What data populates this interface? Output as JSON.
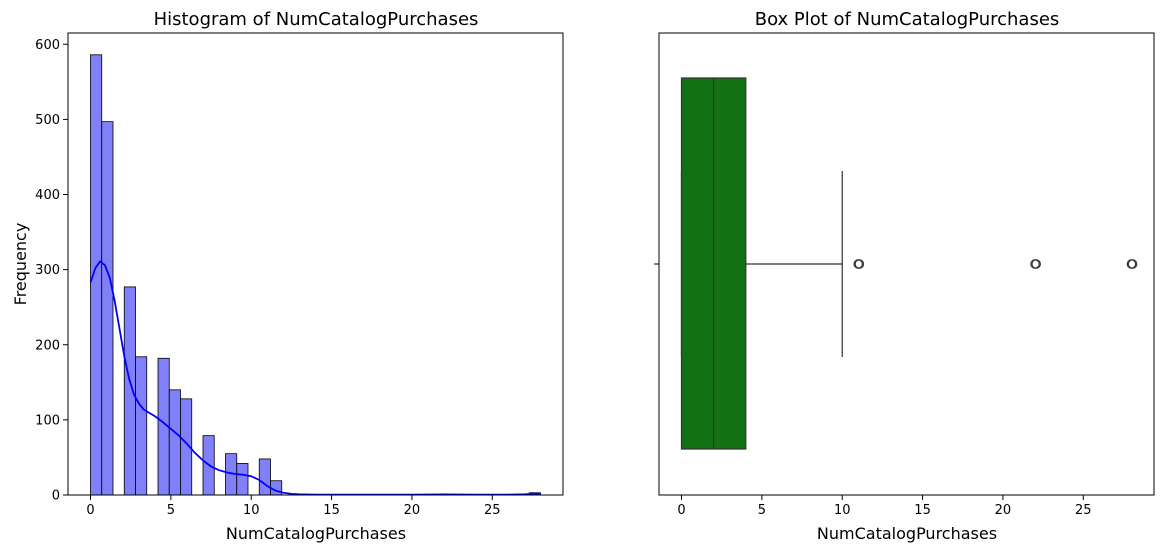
{
  "chart_data": [
    {
      "type": "bar",
      "title": "Histogram of NumCatalogPurchases",
      "xlabel": "NumCatalogPurchases",
      "ylabel": "Frequency",
      "xlim": [
        -1.4,
        29.4
      ],
      "ylim": [
        0,
        615
      ],
      "xticks": [
        0,
        5,
        10,
        15,
        20,
        25
      ],
      "yticks": [
        0,
        100,
        200,
        300,
        400,
        500,
        600
      ],
      "grid": false,
      "bar_color": "#8080f8",
      "kde_color": "#0000ff",
      "bins": [
        {
          "x0": 0.0,
          "x1": 0.7,
          "count": 586
        },
        {
          "x0": 0.7,
          "x1": 1.4,
          "count": 497
        },
        {
          "x0": 1.4,
          "x1": 2.1,
          "count": 0
        },
        {
          "x0": 2.1,
          "x1": 2.8,
          "count": 277
        },
        {
          "x0": 2.8,
          "x1": 3.5,
          "count": 184
        },
        {
          "x0": 3.5,
          "x1": 4.2,
          "count": 0
        },
        {
          "x0": 4.2,
          "x1": 4.9,
          "count": 182
        },
        {
          "x0": 4.9,
          "x1": 5.6,
          "count": 140
        },
        {
          "x0": 5.6,
          "x1": 6.3,
          "count": 128
        },
        {
          "x0": 6.3,
          "x1": 7.0,
          "count": 0
        },
        {
          "x0": 7.0,
          "x1": 7.7,
          "count": 79
        },
        {
          "x0": 7.7,
          "x1": 8.4,
          "count": 0
        },
        {
          "x0": 8.4,
          "x1": 9.1,
          "count": 55
        },
        {
          "x0": 9.1,
          "x1": 9.8,
          "count": 42
        },
        {
          "x0": 9.8,
          "x1": 10.5,
          "count": 0
        },
        {
          "x0": 10.5,
          "x1": 11.2,
          "count": 48
        },
        {
          "x0": 11.2,
          "x1": 11.9,
          "count": 19
        },
        {
          "x0": 27.3,
          "x1": 28.0,
          "count": 3
        }
      ],
      "kde": {
        "x": [
          0,
          0.3,
          0.6,
          0.9,
          1.2,
          1.5,
          1.8,
          2.1,
          2.4,
          2.7,
          3.0,
          3.3,
          3.6,
          4.0,
          4.5,
          5.0,
          5.5,
          6.0,
          6.5,
          7.0,
          7.5,
          8.0,
          8.5,
          9.0,
          9.5,
          10.0,
          10.5,
          11.0,
          11.5,
          12.0,
          12.5,
          13.0,
          14.0,
          15.0,
          17.0,
          20.0,
          22.0,
          24.0,
          26.0,
          27.0,
          27.5,
          28.0
        ],
        "y": [
          283,
          302,
          311,
          306,
          289,
          259,
          222,
          185,
          155,
          134,
          122,
          114,
          110,
          105,
          97,
          88,
          79,
          68,
          56,
          46,
          38,
          33,
          30,
          28,
          27,
          25,
          20,
          12,
          6,
          3,
          1.5,
          1,
          0.5,
          0.5,
          0.5,
          0.5,
          0.8,
          0.5,
          0.5,
          1,
          1.5,
          2
        ]
      }
    },
    {
      "type": "box",
      "title": "Box Plot of NumCatalogPurchases",
      "xlabel": "NumCatalogPurchases",
      "xlim": [
        -1.4,
        29.4
      ],
      "xticks": [
        0,
        5,
        10,
        15,
        20,
        25
      ],
      "grid": false,
      "box_color": "#127112",
      "whisker_low": 0,
      "q1": 0,
      "median": 2,
      "q3": 4,
      "whisker_high": 10,
      "outliers": [
        11,
        22,
        28
      ]
    }
  ]
}
